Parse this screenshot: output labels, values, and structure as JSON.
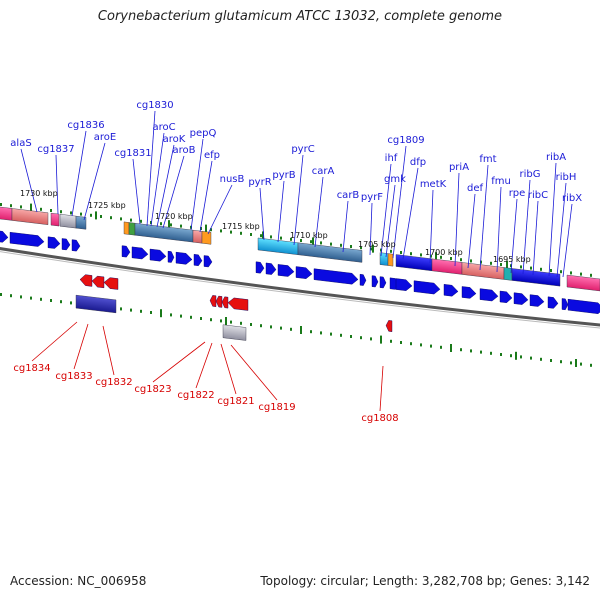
{
  "title": "Corynebacterium glutamicum ATCC 13032, complete genome",
  "footer": {
    "accession": "Accession: NC_006958",
    "topology": "Topology: circular; Length: 3,282,708 bp; Genes: 3,142"
  },
  "colors": {
    "forward_label": "#1b1bd6",
    "reverse_label": "#d60000",
    "forward_arrow": "#0a0ae0",
    "reverse_arrow": "#e61010",
    "tick": "#1a7a1a",
    "backbone": "#555555"
  },
  "kbp_labels": [
    "1730 kbp",
    "1725 kbp",
    "1720 kbp",
    "1715 kbp",
    "1710 kbp",
    "1705 kbp",
    "1700 kbp",
    "1695 kbp"
  ],
  "forward_genes": [
    "alaS",
    "cg1837",
    "cg1836",
    "aroE",
    "cg1831",
    "cg1830",
    "aroC",
    "aroK",
    "aroB",
    "pepQ",
    "efp",
    "nusB",
    "pyrR",
    "pyrB",
    "pyrC",
    "carA",
    "carB",
    "pyrF",
    "ihf",
    "gmk",
    "cg1809",
    "dfp",
    "metK",
    "priA",
    "def",
    "fmt",
    "fmu",
    "rpe",
    "ribG",
    "ribC",
    "ribA",
    "ribH",
    "ribX"
  ],
  "reverse_genes": [
    "cg1834",
    "cg1833",
    "cg1832",
    "cg1823",
    "cg1822",
    "cg1821",
    "cg1819",
    "cg1808"
  ]
}
